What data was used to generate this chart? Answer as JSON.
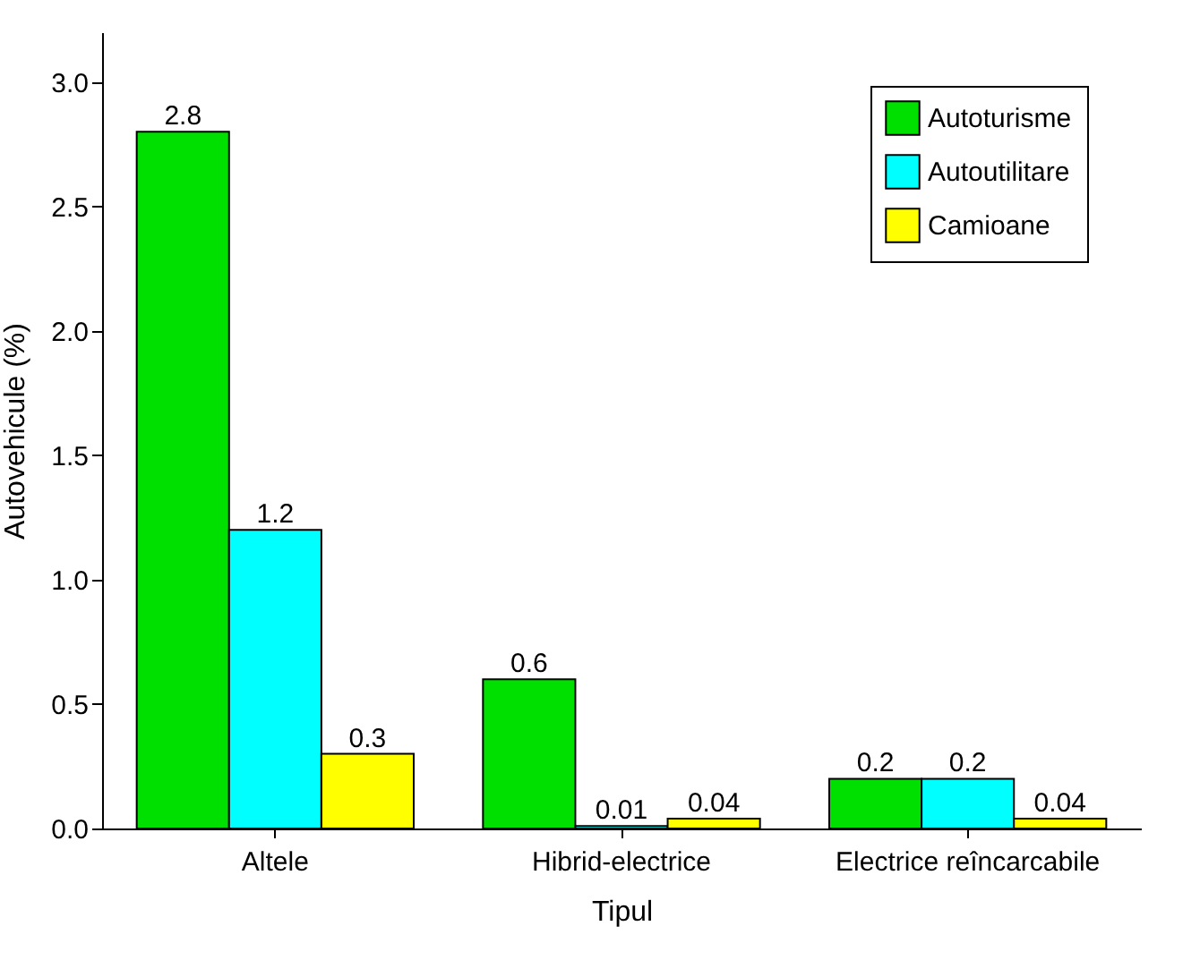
{
  "chart_data": {
    "type": "bar",
    "xlabel": "Tipul",
    "ylabel": "Autovehicule (%)",
    "categories": [
      "Altele",
      "Hibrid-electrice",
      "Electrice reîncarcabile"
    ],
    "series": [
      {
        "name": "Autoturisme",
        "color": "#00e000",
        "values": [
          2.8,
          0.6,
          0.2
        ]
      },
      {
        "name": "Autoutilitare",
        "color": "#00ffff",
        "values": [
          1.2,
          0.01,
          0.2
        ]
      },
      {
        "name": "Camioane",
        "color": "#ffff00",
        "values": [
          0.3,
          0.04,
          0.04
        ]
      }
    ],
    "ylim": [
      0,
      3.2
    ],
    "yticks": [
      {
        "value": 0,
        "label": "0.0"
      },
      0.5,
      {
        "value": 1,
        "label": "1.0"
      },
      1.5,
      {
        "value": 2,
        "label": "2.0"
      },
      2.5,
      {
        "value": 3,
        "label": "3.0"
      }
    ],
    "data_labels": true,
    "legend": "top right",
    "grid": false
  }
}
